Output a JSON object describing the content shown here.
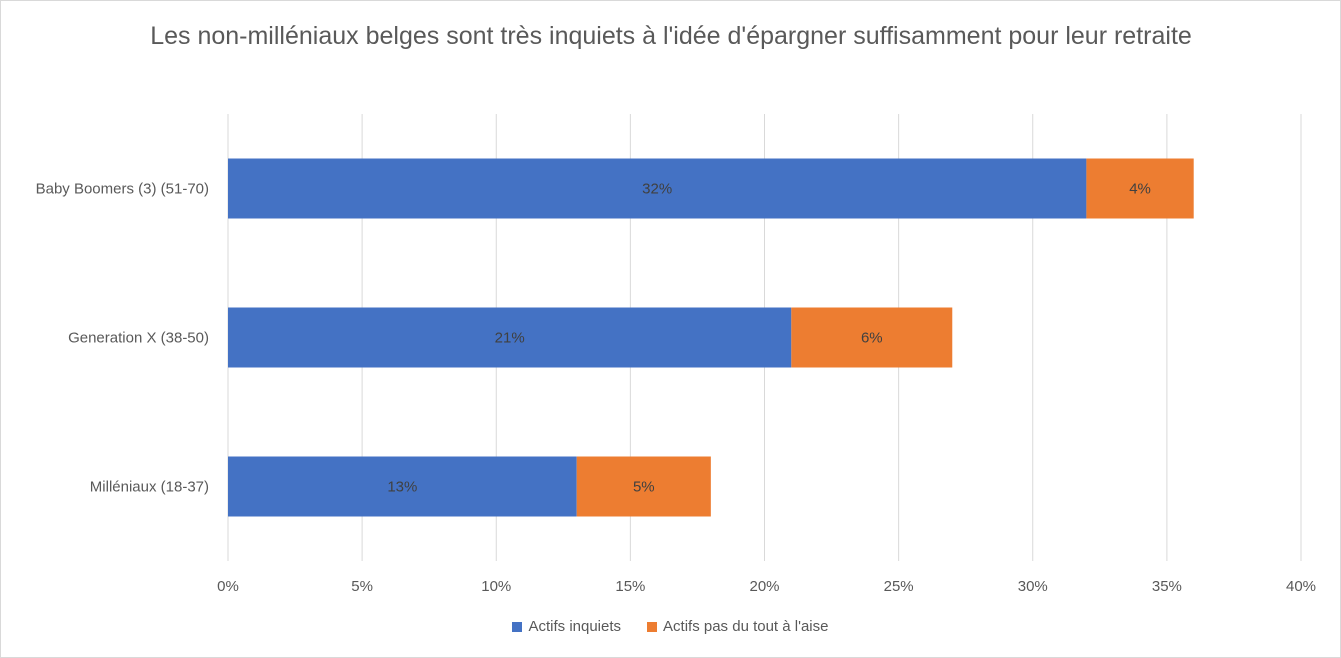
{
  "chart_data": {
    "type": "bar",
    "orientation": "horizontal",
    "stacked": true,
    "title": "Les non-milléniaux belges sont très inquiets à l'idée d'épargner suffisamment pour leur retraite",
    "categories": [
      "Baby Boomers (3) (51-70)",
      "Generation X (38-50)",
      "Milléniaux (18-37)"
    ],
    "series": [
      {
        "name": "Actifs inquiets",
        "color": "#4472C4",
        "values": [
          32,
          21,
          13
        ],
        "labels": [
          "32%",
          "21%",
          "13%"
        ]
      },
      {
        "name": "Actifs pas du tout à l'aise",
        "color": "#ED7D31",
        "values": [
          4,
          6,
          5
        ],
        "labels": [
          "4%",
          "6%",
          "5%"
        ]
      }
    ],
    "xlim": [
      0,
      40
    ],
    "xticks": [
      0,
      5,
      10,
      15,
      20,
      25,
      30,
      35,
      40
    ],
    "xtick_labels": [
      "0%",
      "5%",
      "10%",
      "15%",
      "20%",
      "25%",
      "30%",
      "35%",
      "40%"
    ],
    "grid": "vertical",
    "legend_position": "bottom"
  }
}
